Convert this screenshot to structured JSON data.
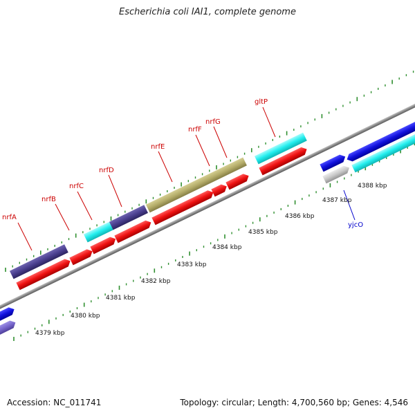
{
  "title": "Escherichia coli IAI1, complete genome",
  "footer": {
    "accession": "Accession: NC_011741",
    "summary": "Topology: circular; Length: 4,700,560 bp; Genes: 4,546"
  },
  "colors": {
    "backbone": "#8a8a8a",
    "tick": "#2f8f2f",
    "gene_label_red": "#cc0000",
    "gene_label_blue": "#0000cc",
    "feature_red": "#ee1111",
    "feature_blue": "#1111dd",
    "feature_cyan": "#22eeee",
    "feature_navy": "#4a3f8f",
    "feature_olive": "#b5ad6a",
    "feature_gray": "#c8c8c8",
    "feature_lavender": "#7766cc"
  },
  "scale_labels": [
    "4379 kbp",
    "4380 kbp",
    "4381 kbp",
    "4382 kbp",
    "4383 kbp",
    "4384 kbp",
    "4385 kbp",
    "4386 kbp",
    "4387 kbp",
    "4388 kbp"
  ],
  "gene_labels": [
    {
      "name": "nrfA",
      "color": "red"
    },
    {
      "name": "nrfB",
      "color": "red"
    },
    {
      "name": "nrfC",
      "color": "red"
    },
    {
      "name": "nrfD",
      "color": "red"
    },
    {
      "name": "nrfE",
      "color": "red"
    },
    {
      "name": "nrfF",
      "color": "red"
    },
    {
      "name": "nrfG",
      "color": "red"
    },
    {
      "name": "gltP",
      "color": "red"
    },
    {
      "name": "yjcO",
      "color": "blue"
    }
  ]
}
